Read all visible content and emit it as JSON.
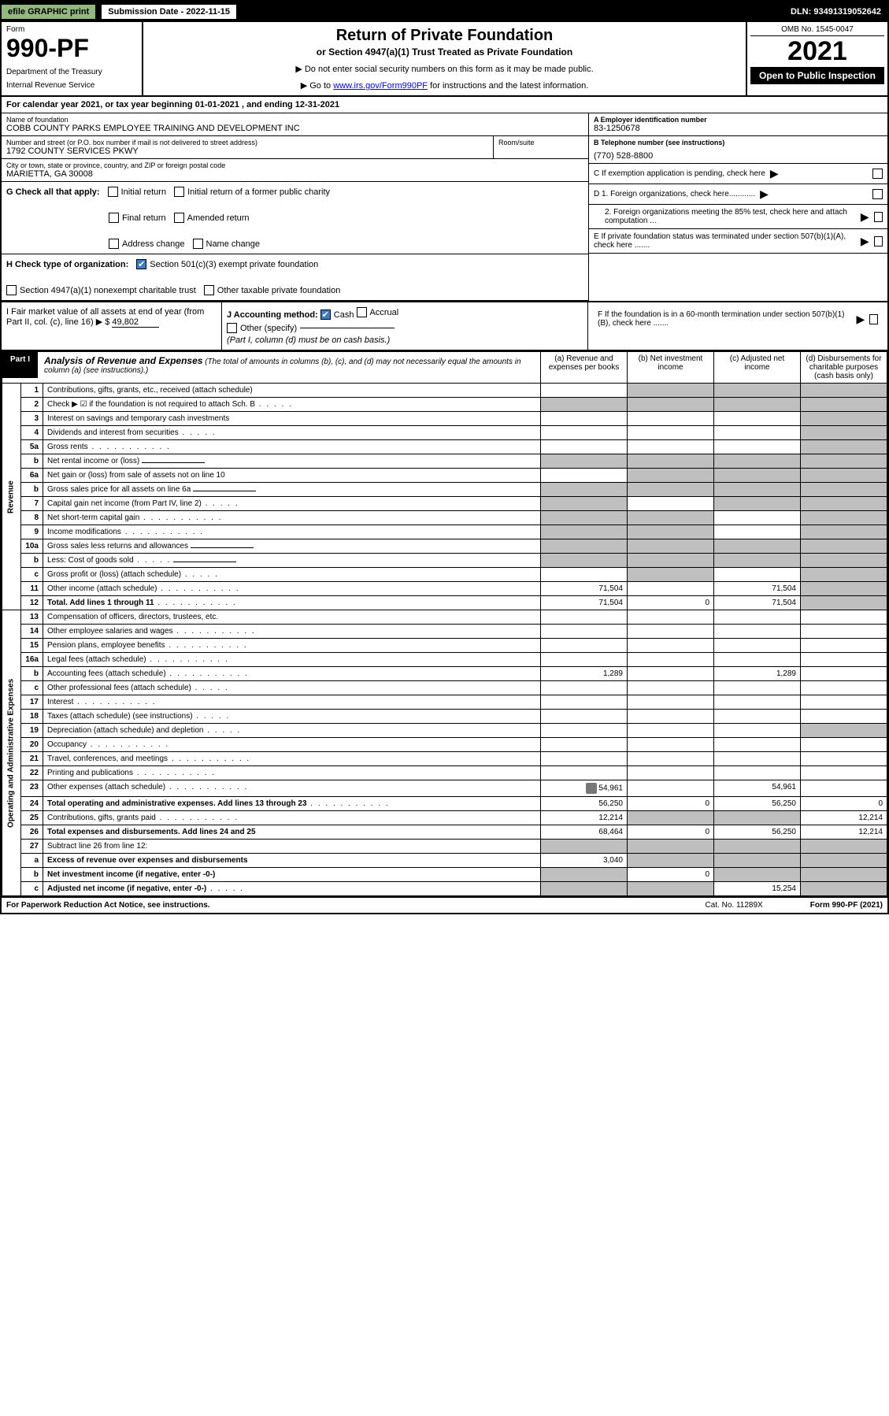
{
  "topbar": {
    "efile": "efile GRAPHIC print",
    "subdate_lbl": "Submission Date - 2022-11-15",
    "dln": "DLN: 93491319052642"
  },
  "header": {
    "form_lbl": "Form",
    "form_no": "990-PF",
    "dept": "Department of the Treasury",
    "irs": "Internal Revenue Service",
    "title": "Return of Private Foundation",
    "subtitle": "or Section 4947(a)(1) Trust Treated as Private Foundation",
    "note1": "▶ Do not enter social security numbers on this form as it may be made public.",
    "note2_pre": "▶ Go to ",
    "note2_link": "www.irs.gov/Form990PF",
    "note2_post": " for instructions and the latest information.",
    "omb": "OMB No. 1545-0047",
    "year": "2021",
    "open": "Open to Public Inspection"
  },
  "cal": "For calendar year 2021, or tax year beginning 01-01-2021              , and ending 12-31-2021",
  "id": {
    "name_lbl": "Name of foundation",
    "name": "COBB COUNTY PARKS EMPLOYEE TRAINING AND DEVELOPMENT INC",
    "addr_lbl": "Number and street (or P.O. box number if mail is not delivered to street address)",
    "addr": "1792 COUNTY SERVICES PKWY",
    "room_lbl": "Room/suite",
    "city_lbl": "City or town, state or province, country, and ZIP or foreign postal code",
    "city": "MARIETTA, GA  30008",
    "ein_lbl": "A Employer identification number",
    "ein": "83-1250678",
    "phone_lbl": "B Telephone number (see instructions)",
    "phone": "(770) 528-8800",
    "c": "C If exemption application is pending, check here",
    "d1": "D 1. Foreign organizations, check here............",
    "d2": "2. Foreign organizations meeting the 85% test, check here and attach computation ...",
    "e": "E  If private foundation status was terminated under section 507(b)(1)(A), check here .......",
    "f": "F  If the foundation is in a 60-month termination under section 507(b)(1)(B), check here .......",
    "g_lbl": "G Check all that apply:",
    "g_opts": [
      "Initial return",
      "Initial return of a former public charity",
      "Final return",
      "Amended return",
      "Address change",
      "Name change"
    ],
    "h_lbl": "H Check type of organization:",
    "h1": "Section 501(c)(3) exempt private foundation",
    "h2": "Section 4947(a)(1) nonexempt charitable trust",
    "h3": "Other taxable private foundation",
    "i_lbl": "I Fair market value of all assets at end of year (from Part II, col. (c), line 16) ▶ $",
    "i_val": "49,802",
    "j_lbl": "J Accounting method:",
    "j_cash": "Cash",
    "j_accrual": "Accrual",
    "j_other": "Other (specify)",
    "j_note": "(Part I, column (d) must be on cash basis.)"
  },
  "part1": {
    "lbl": "Part I",
    "title": "Analysis of Revenue and Expenses",
    "sub": "(The total of amounts in columns (b), (c), and (d) may not necessarily equal the amounts in column (a) (see instructions).)",
    "cols": {
      "a": "(a)   Revenue and expenses per books",
      "b": "(b)   Net investment income",
      "c": "(c)   Adjusted net income",
      "d": "(d)   Disbursements for charitable purposes (cash basis only)"
    }
  },
  "sections": {
    "rev": "Revenue",
    "opx": "Operating and Administrative Expenses"
  },
  "rows": [
    {
      "g": "rev",
      "ln": "1",
      "desc": "Contributions, gifts, grants, etc., received (attach schedule)",
      "shade": [
        "b",
        "c",
        "d"
      ]
    },
    {
      "g": "rev",
      "ln": "2",
      "desc": "Check ▶ ☑ if the foundation is not required to attach Sch. B",
      "dots": "s",
      "shade": [
        "a",
        "b",
        "c",
        "d"
      ]
    },
    {
      "g": "rev",
      "ln": "3",
      "desc": "Interest on savings and temporary cash investments",
      "shade": [
        "d"
      ]
    },
    {
      "g": "rev",
      "ln": "4",
      "desc": "Dividends and interest from securities",
      "dots": "s",
      "shade": [
        "d"
      ]
    },
    {
      "g": "rev",
      "ln": "5a",
      "desc": "Gross rents",
      "dots": "l",
      "shade": [
        "d"
      ]
    },
    {
      "g": "rev",
      "ln": "b",
      "desc": "Net rental income or (loss)",
      "uline": true,
      "shade": [
        "a",
        "b",
        "c",
        "d"
      ]
    },
    {
      "g": "rev",
      "ln": "6a",
      "desc": "Net gain or (loss) from sale of assets not on line 10",
      "shade": [
        "b",
        "c",
        "d"
      ]
    },
    {
      "g": "rev",
      "ln": "b",
      "desc": "Gross sales price for all assets on line 6a",
      "uline": true,
      "shade": [
        "a",
        "b",
        "c",
        "d"
      ]
    },
    {
      "g": "rev",
      "ln": "7",
      "desc": "Capital gain net income (from Part IV, line 2)",
      "dots": "s",
      "shade": [
        "a",
        "c",
        "d"
      ]
    },
    {
      "g": "rev",
      "ln": "8",
      "desc": "Net short-term capital gain",
      "dots": "l",
      "shade": [
        "a",
        "b",
        "d"
      ]
    },
    {
      "g": "rev",
      "ln": "9",
      "desc": "Income modifications",
      "dots": "l",
      "shade": [
        "a",
        "b",
        "d"
      ]
    },
    {
      "g": "rev",
      "ln": "10a",
      "desc": "Gross sales less returns and allowances",
      "uline": true,
      "shade": [
        "a",
        "b",
        "c",
        "d"
      ]
    },
    {
      "g": "rev",
      "ln": "b",
      "desc": "Less: Cost of goods sold",
      "dots": "s",
      "uline": true,
      "shade": [
        "a",
        "b",
        "c",
        "d"
      ]
    },
    {
      "g": "rev",
      "ln": "c",
      "desc": "Gross profit or (loss) (attach schedule)",
      "dots": "s",
      "shade": [
        "b",
        "d"
      ]
    },
    {
      "g": "rev",
      "ln": "11",
      "desc": "Other income (attach schedule)",
      "dots": "l",
      "a": "71,504",
      "c": "71,504",
      "shade": [
        "d"
      ]
    },
    {
      "g": "rev",
      "ln": "12",
      "desc": "Total. Add lines 1 through 11",
      "dots": "l",
      "bold": true,
      "a": "71,504",
      "b": "0",
      "c": "71,504",
      "shade": [
        "d"
      ]
    },
    {
      "g": "opx",
      "ln": "13",
      "desc": "Compensation of officers, directors, trustees, etc."
    },
    {
      "g": "opx",
      "ln": "14",
      "desc": "Other employee salaries and wages",
      "dots": "l"
    },
    {
      "g": "opx",
      "ln": "15",
      "desc": "Pension plans, employee benefits",
      "dots": "l"
    },
    {
      "g": "opx",
      "ln": "16a",
      "desc": "Legal fees (attach schedule)",
      "dots": "l"
    },
    {
      "g": "opx",
      "ln": "b",
      "desc": "Accounting fees (attach schedule)",
      "dots": "l",
      "a": "1,289",
      "c": "1,289"
    },
    {
      "g": "opx",
      "ln": "c",
      "desc": "Other professional fees (attach schedule)",
      "dots": "s"
    },
    {
      "g": "opx",
      "ln": "17",
      "desc": "Interest",
      "dots": "l"
    },
    {
      "g": "opx",
      "ln": "18",
      "desc": "Taxes (attach schedule) (see instructions)",
      "dots": "s"
    },
    {
      "g": "opx",
      "ln": "19",
      "desc": "Depreciation (attach schedule) and depletion",
      "dots": "s",
      "shade": [
        "d"
      ]
    },
    {
      "g": "opx",
      "ln": "20",
      "desc": "Occupancy",
      "dots": "l"
    },
    {
      "g": "opx",
      "ln": "21",
      "desc": "Travel, conferences, and meetings",
      "dots": "l"
    },
    {
      "g": "opx",
      "ln": "22",
      "desc": "Printing and publications",
      "dots": "l"
    },
    {
      "g": "opx",
      "ln": "23",
      "desc": "Other expenses (attach schedule)",
      "dots": "l",
      "icon": true,
      "a": "54,961",
      "c": "54,961"
    },
    {
      "g": "opx",
      "ln": "24",
      "desc": "Total operating and administrative expenses. Add lines 13 through 23",
      "dots": "l",
      "bold": true,
      "a": "56,250",
      "b": "0",
      "c": "56,250",
      "d": "0"
    },
    {
      "g": "opx",
      "ln": "25",
      "desc": "Contributions, gifts, grants paid",
      "dots": "l",
      "a": "12,214",
      "shade": [
        "b",
        "c"
      ],
      "d": "12,214"
    },
    {
      "g": "opx",
      "ln": "26",
      "desc": "Total expenses and disbursements. Add lines 24 and 25",
      "bold": true,
      "a": "68,464",
      "b": "0",
      "c": "56,250",
      "d": "12,214"
    },
    {
      "g": "opx",
      "ln": "27",
      "desc": "Subtract line 26 from line 12:",
      "shade": [
        "a",
        "b",
        "c",
        "d"
      ]
    },
    {
      "g": "opx",
      "ln": "a",
      "desc": "Excess of revenue over expenses and disbursements",
      "bold": true,
      "a": "3,040",
      "shade": [
        "b",
        "c",
        "d"
      ]
    },
    {
      "g": "opx",
      "ln": "b",
      "desc": "Net investment income (if negative, enter -0-)",
      "bold": true,
      "shade": [
        "a",
        "c",
        "d"
      ],
      "b": "0"
    },
    {
      "g": "opx",
      "ln": "c",
      "desc": "Adjusted net income (if negative, enter -0-)",
      "dots": "s",
      "bold": true,
      "shade": [
        "a",
        "b",
        "d"
      ],
      "c": "15,254"
    }
  ],
  "footer": {
    "left": "For Paperwork Reduction Act Notice, see instructions.",
    "cat": "Cat. No. 11289X",
    "right": "Form 990-PF (2021)"
  }
}
